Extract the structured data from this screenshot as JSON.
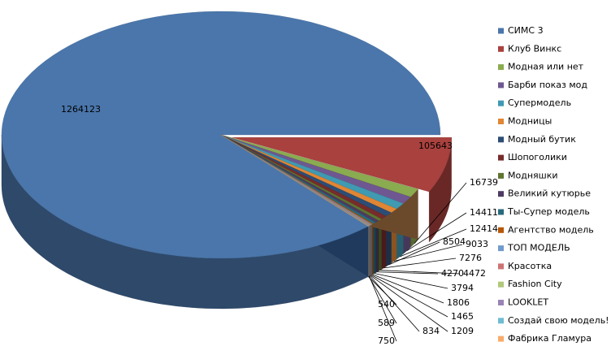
{
  "chart_data": {
    "type": "pie3d",
    "categories": [
      "СИМС 3",
      "Клуб Винкс",
      "Модная или нет",
      "Барби показ мод",
      "Супермодель",
      "Модницы",
      "Модный бутик",
      "Шопоголики",
      "Модняшки",
      "Великий кутюрье",
      "Ты-Супер модель",
      "Агентство модель",
      "ТОП МОДЕЛЬ",
      "Красотка",
      "Fashion City",
      "LOOKLET",
      "Создай свою модель!",
      "Фабрика Гламура"
    ],
    "values": [
      1264123,
      105643,
      16739,
      14411,
      12414,
      9033,
      8504,
      7276,
      4472,
      4270,
      3794,
      1806,
      1465,
      1209,
      834,
      750,
      589,
      540
    ],
    "colors": [
      "#4a76ab",
      "#a9413e",
      "#8aab4f",
      "#6f5891",
      "#3f9ab2",
      "#e08634",
      "#2c4d75",
      "#772c2a",
      "#5f7530",
      "#4d3b62",
      "#276a7c",
      "#b65708",
      "#729aca",
      "#cd7371",
      "#afc97a",
      "#9983b5",
      "#6fbdd1",
      "#f9ab6b"
    ],
    "legend": "right"
  }
}
